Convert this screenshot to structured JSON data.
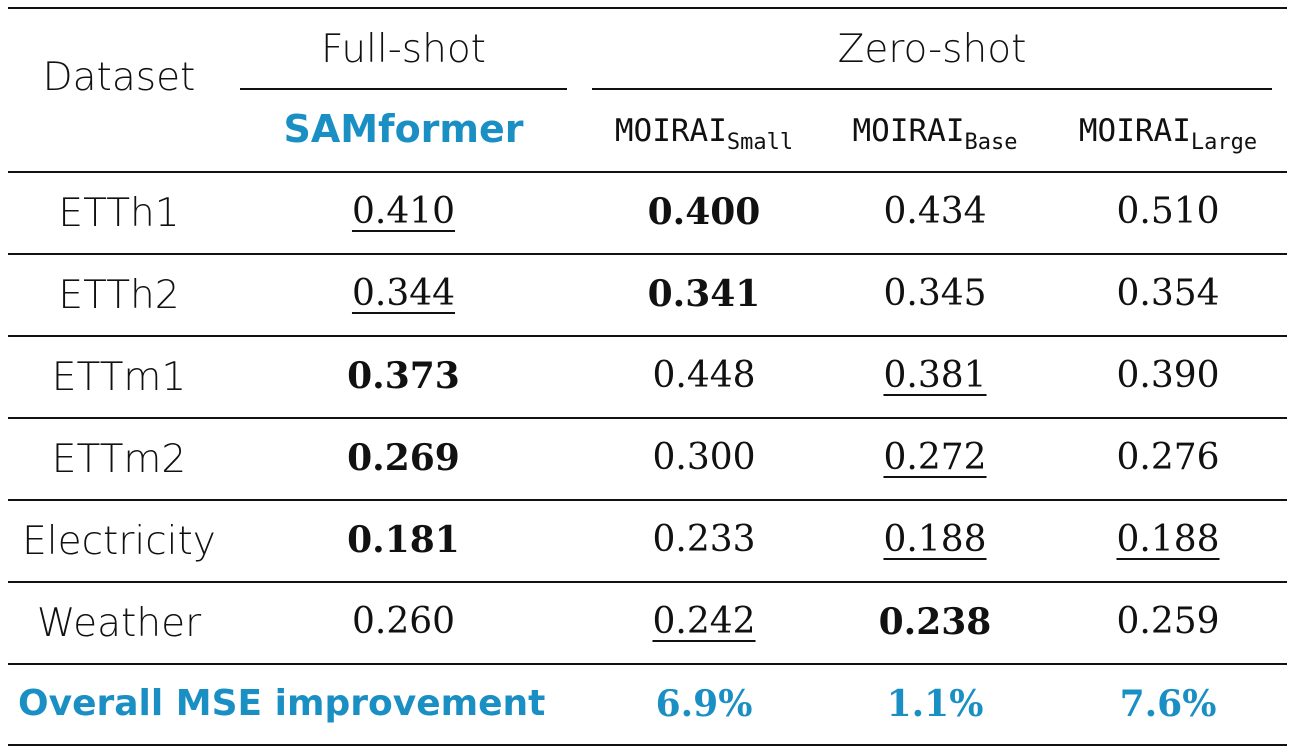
{
  "header": {
    "dataset": "Dataset",
    "full_shot": "Full-shot",
    "zero_shot": "Zero-shot",
    "samformer": "SAMformer",
    "moirai_name": "MOIRAI",
    "moirai_small": "Small",
    "moirai_base": "Base",
    "moirai_large": "Large"
  },
  "rows": [
    {
      "dataset": "ETTh1",
      "values": [
        "0.410",
        "0.400",
        "0.434",
        "0.510"
      ]
    },
    {
      "dataset": "ETTh2",
      "values": [
        "0.344",
        "0.341",
        "0.345",
        "0.354"
      ]
    },
    {
      "dataset": "ETTm1",
      "values": [
        "0.373",
        "0.448",
        "0.381",
        "0.390"
      ]
    },
    {
      "dataset": "ETTm2",
      "values": [
        "0.269",
        "0.300",
        "0.272",
        "0.276"
      ]
    },
    {
      "dataset": "Electricity",
      "values": [
        "0.181",
        "0.233",
        "0.188",
        "0.188"
      ]
    },
    {
      "dataset": "Weather",
      "values": [
        "0.260",
        "0.242",
        "0.238",
        "0.259"
      ]
    }
  ],
  "summary": {
    "label": "Overall MSE improvement",
    "values": [
      "6.9%",
      "1.1%",
      "7.6%"
    ]
  },
  "colors": {
    "accent": "#1a8fc4"
  }
}
